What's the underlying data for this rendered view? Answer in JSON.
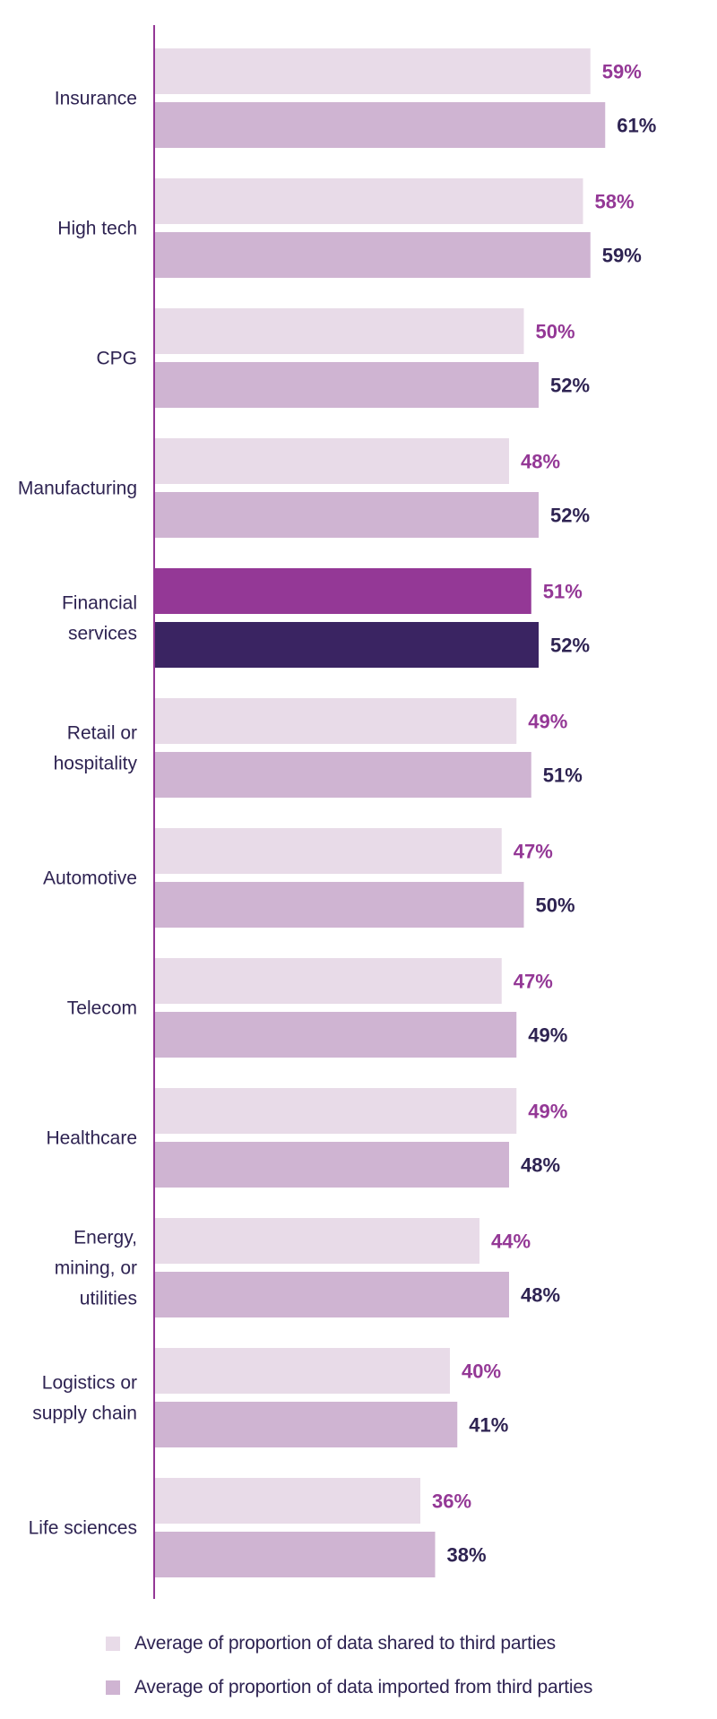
{
  "chart_data": {
    "type": "bar",
    "orientation": "horizontal",
    "categories": [
      [
        "Insurance"
      ],
      [
        "High tech"
      ],
      [
        "CPG"
      ],
      [
        "Manufacturing"
      ],
      [
        "Financial",
        "services"
      ],
      [
        "Retail or",
        "hospitality"
      ],
      [
        "Automotive"
      ],
      [
        "Telecom"
      ],
      [
        "Healthcare"
      ],
      [
        "Energy,",
        "mining, or",
        "utilities"
      ],
      [
        "Logistics or",
        "supply chain"
      ],
      [
        "Life sciences"
      ]
    ],
    "highlight_category_index": 4,
    "series": [
      {
        "name": "Average of proportion of data shared to third parties",
        "values": [
          59,
          58,
          50,
          48,
          51,
          49,
          47,
          47,
          49,
          44,
          40,
          36
        ],
        "labels": [
          "59%",
          "58%",
          "50%",
          "48%",
          "51%",
          "49%",
          "47%",
          "47%",
          "49%",
          "44%",
          "40%",
          "36%"
        ],
        "color": "#e8dbe8",
        "highlight_color": "#943896",
        "label_color": "#943896"
      },
      {
        "name": "Average of proportion of data imported from third parties",
        "values": [
          61,
          59,
          52,
          52,
          52,
          51,
          50,
          49,
          48,
          48,
          41,
          38
        ],
        "labels": [
          "61%",
          "59%",
          "52%",
          "52%",
          "52%",
          "51%",
          "50%",
          "49%",
          "48%",
          "48%",
          "41%",
          "38%"
        ],
        "color": "#cfb4d2",
        "highlight_color": "#3a2462",
        "label_color": "#2e2352"
      }
    ],
    "axis_color": "#943896",
    "xlim": [
      0,
      66
    ],
    "grid": false,
    "legend_position": "bottom"
  }
}
